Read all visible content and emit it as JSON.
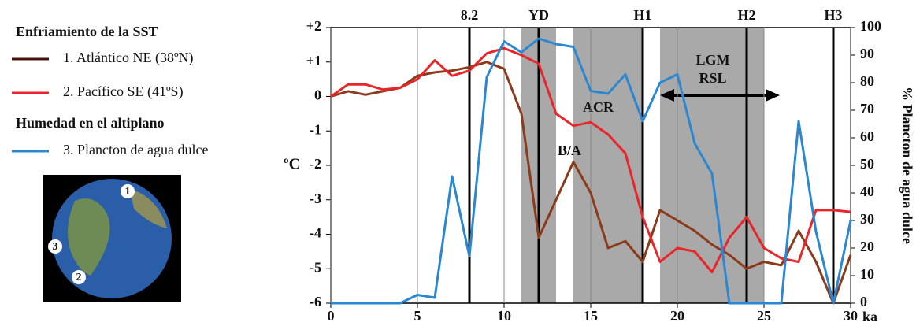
{
  "chart_data": {
    "type": "line",
    "legend_groups": [
      "Enfriamiento de la SST",
      "Humedad en el altiplano"
    ],
    "map_labels": [
      "1",
      "2",
      "3"
    ],
    "x": [
      0,
      1,
      2,
      3,
      4,
      5,
      6,
      7,
      8,
      9,
      10,
      11,
      12,
      13,
      14,
      15,
      16,
      17,
      18,
      19,
      20,
      21,
      22,
      23,
      24,
      25,
      26,
      27,
      28,
      29,
      30
    ],
    "series": [
      {
        "name": "1. Atlántico NE (38ºN)",
        "color": "#8b3a1a",
        "legend_color": "#4a0f0f",
        "values": [
          0,
          0.15,
          0.05,
          0.15,
          0.25,
          0.6,
          0.7,
          0.75,
          0.85,
          1.0,
          0.8,
          -0.5,
          -4.1,
          -3.0,
          -1.9,
          -2.8,
          -4.4,
          -4.2,
          -4.8,
          -3.3,
          -3.6,
          -3.9,
          -4.3,
          -4.6,
          -5.0,
          -4.8,
          -4.9,
          -3.9,
          -4.8,
          -6.0,
          -4.6
        ]
      },
      {
        "name": "2. Pacífico SE (41ºS)",
        "color": "#e8262a",
        "values": [
          0,
          0.35,
          0.35,
          0.2,
          0.25,
          0.5,
          1.05,
          0.6,
          0.75,
          1.25,
          1.4,
          1.2,
          0.95,
          -0.5,
          -0.85,
          -0.75,
          -1.1,
          -1.65,
          -3.5,
          -4.8,
          -4.4,
          -4.5,
          -5.1,
          -4.1,
          -3.5,
          -4.4,
          -4.7,
          -4.8,
          -3.3,
          -3.3,
          -3.35
        ]
      },
      {
        "name": "3. Plancton de agua dulce",
        "color": "#2b87d1",
        "axis": "y2",
        "values": [
          0,
          0,
          0,
          0,
          0,
          3,
          2,
          46,
          17,
          82,
          95,
          91,
          96,
          94,
          93,
          77,
          76,
          83,
          66,
          80,
          83,
          58,
          47,
          0,
          0,
          0,
          0,
          66,
          26,
          0,
          30
        ]
      }
    ],
    "events": {
      "labels": [
        "8.2",
        "YD",
        "H1",
        "H2",
        "H3"
      ],
      "x": [
        8,
        12,
        18,
        24,
        29
      ]
    },
    "shaded_periods": [
      [
        11,
        13
      ],
      [
        14,
        18
      ],
      [
        19,
        25
      ]
    ],
    "annotations": [
      "ACR",
      "B/A",
      "LGM",
      "RSL"
    ],
    "ylabel": "ºC",
    "y2label": "% Plancton de agua dulce",
    "x_unit": "ka",
    "xlim": [
      0,
      30
    ],
    "xticks": [
      0,
      5,
      10,
      15,
      20,
      25,
      30
    ],
    "ylim": [
      -6,
      2
    ],
    "yticks": [
      {
        "value": 2,
        "label": "+2"
      },
      {
        "value": 1,
        "label": "+1"
      },
      0,
      -1,
      -2,
      -3,
      -4,
      -5,
      -6
    ],
    "y2lim": [
      0,
      100
    ],
    "y2ticks": [
      0,
      10,
      20,
      30,
      40,
      50,
      60,
      70,
      80,
      90,
      100
    ]
  }
}
